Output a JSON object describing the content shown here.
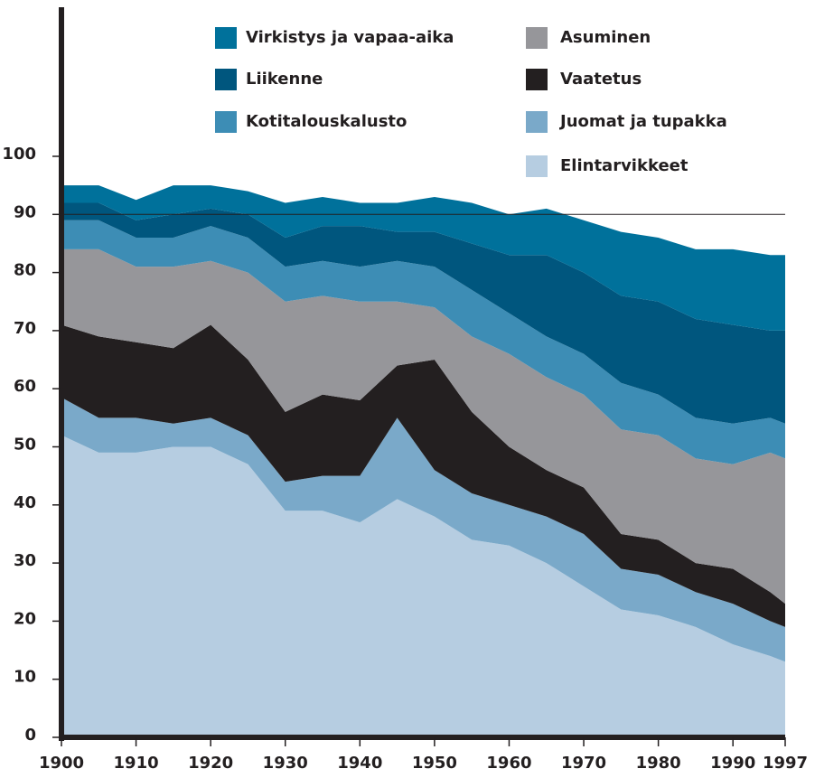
{
  "chart_data": {
    "type": "stacked_area",
    "x": [
      1900,
      1905,
      1910,
      1915,
      1920,
      1925,
      1930,
      1935,
      1940,
      1945,
      1950,
      1955,
      1960,
      1965,
      1970,
      1975,
      1980,
      1985,
      1990,
      1995,
      1997
    ],
    "xticks": [
      1900,
      1910,
      1920,
      1930,
      1940,
      1950,
      1960,
      1970,
      1980,
      1990,
      1997
    ],
    "xlim": [
      1900,
      1997
    ],
    "ylim": [
      0,
      100
    ],
    "yticks": [
      0,
      10,
      20,
      30,
      40,
      50,
      60,
      70,
      80,
      90,
      100
    ],
    "reference_line": 90,
    "series": [
      {
        "name": "Elintarvikkeet",
        "color": "#b6cde1",
        "values": [
          52,
          49,
          49,
          50,
          50,
          47,
          39,
          39,
          37,
          41,
          38,
          34,
          33,
          30,
          26,
          22,
          21,
          19,
          16,
          14,
          13
        ]
      },
      {
        "name": "Juomat ja tupakka",
        "color": "#7aa9c9",
        "values": [
          6.5,
          6,
          6,
          4,
          5,
          5,
          5,
          6,
          8,
          14,
          8,
          8,
          7,
          8,
          9,
          7,
          7,
          6,
          7,
          6,
          6
        ]
      },
      {
        "name": "Vaatetus",
        "color": "#231f20",
        "values": [
          12.5,
          14,
          13,
          13,
          16,
          13,
          12,
          14,
          13,
          9,
          19,
          14,
          10,
          8,
          8,
          6,
          6,
          5,
          6,
          5,
          4
        ]
      },
      {
        "name": "Asuminen",
        "color": "#96969a",
        "values": [
          13,
          15,
          13,
          14,
          11,
          15,
          19,
          17,
          17,
          11,
          9,
          13,
          16,
          16,
          16,
          18,
          18,
          18,
          18,
          24,
          25
        ]
      },
      {
        "name": "Kotitalouskalusto",
        "color": "#3d8db5",
        "values": [
          5,
          5,
          5,
          5,
          6,
          6,
          6,
          6,
          6,
          7,
          7,
          8,
          7,
          7,
          7,
          8,
          7,
          7,
          7,
          6,
          6
        ]
      },
      {
        "name": "Liikenne",
        "color": "#00567e",
        "values": [
          3,
          3,
          3,
          4,
          3,
          4,
          5,
          6,
          7,
          5,
          6,
          8,
          10,
          14,
          14,
          15,
          16,
          17,
          17,
          15,
          16
        ]
      },
      {
        "name": "Virkistys ja vapaa-aika",
        "color": "#00719b",
        "values": [
          3,
          3,
          3.5,
          5,
          4,
          4,
          6,
          5,
          4,
          5,
          6,
          7,
          7,
          8,
          9,
          11,
          11,
          12,
          13,
          13,
          13
        ]
      }
    ]
  }
}
